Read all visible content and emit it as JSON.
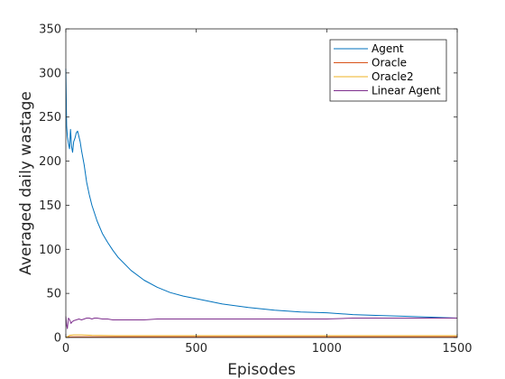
{
  "chart_data": {
    "type": "line",
    "title": "",
    "xlabel": "Episodes",
    "ylabel": "Averaged daily wastage",
    "xlim": [
      0,
      1500
    ],
    "ylim": [
      0,
      350
    ],
    "x_ticks": [
      0,
      500,
      1000,
      1500
    ],
    "x_tick_labels": [
      "0",
      "500",
      "1000",
      "1500"
    ],
    "y_ticks": [
      0,
      50,
      100,
      150,
      200,
      250,
      300,
      350
    ],
    "y_tick_labels": [
      "0",
      "50",
      "100",
      "150",
      "200",
      "250",
      "300",
      "350"
    ],
    "grid": false,
    "legend": {
      "position": "top-right"
    },
    "series": [
      {
        "name": "Agent",
        "color": "#0072BD",
        "x": [
          0,
          3,
          6,
          10,
          14,
          18,
          22,
          26,
          30,
          35,
          40,
          45,
          50,
          55,
          60,
          70,
          80,
          90,
          100,
          120,
          140,
          160,
          180,
          200,
          250,
          300,
          350,
          400,
          450,
          500,
          600,
          700,
          800,
          900,
          1000,
          1100,
          1200,
          1300,
          1400,
          1500
        ],
        "y": [
          305,
          240,
          228,
          220,
          214,
          236,
          216,
          210,
          222,
          226,
          232,
          234,
          228,
          222,
          212,
          196,
          176,
          162,
          150,
          132,
          118,
          108,
          99,
          91,
          76,
          65,
          57,
          51,
          47,
          44,
          38,
          34,
          31,
          29,
          28,
          26,
          25,
          24,
          23,
          22
        ]
      },
      {
        "name": "Oracle",
        "color": "#D95319",
        "x": [
          0,
          50,
          100,
          200,
          400,
          600,
          800,
          1000,
          1200,
          1400,
          1500
        ],
        "y": [
          0.6,
          0.8,
          0.8,
          0.8,
          0.8,
          0.8,
          0.8,
          0.8,
          0.8,
          0.8,
          0.8
        ]
      },
      {
        "name": "Oracle2",
        "color": "#EDB120",
        "x": [
          0,
          5,
          15,
          30,
          60,
          100,
          200,
          400,
          600,
          800,
          1000,
          1200,
          1400,
          1500
        ],
        "y": [
          0,
          0.5,
          2.5,
          3,
          3,
          2.5,
          2,
          2,
          2,
          2,
          2,
          2,
          2,
          2
        ]
      },
      {
        "name": "Linear Agent",
        "color": "#7E2F8E",
        "x": [
          0,
          3,
          6,
          10,
          15,
          20,
          25,
          30,
          40,
          50,
          60,
          70,
          80,
          90,
          100,
          110,
          120,
          140,
          160,
          180,
          200,
          250,
          300,
          350,
          400,
          500,
          600,
          700,
          800,
          900,
          1000,
          1100,
          1200,
          1300,
          1400,
          1500
        ],
        "y": [
          24,
          14,
          10,
          22,
          20,
          16,
          18,
          19,
          20,
          21,
          20,
          21,
          22,
          22,
          21,
          22,
          22,
          21,
          21,
          20,
          20,
          20,
          20,
          21,
          21,
          21,
          21,
          21,
          21,
          21,
          21,
          22,
          22,
          22,
          22,
          22
        ]
      }
    ]
  }
}
